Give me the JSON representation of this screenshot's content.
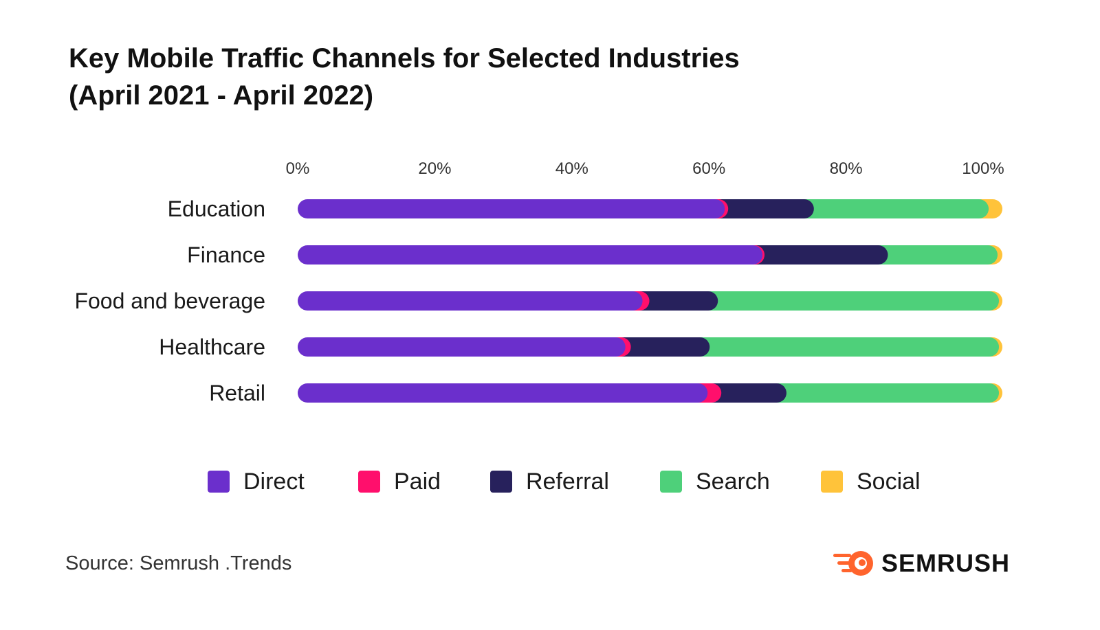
{
  "title": {
    "line1": "Key Mobile Traffic Channels for Selected Industries",
    "line2": "(April 2021 - April 2022)"
  },
  "chart_data": {
    "type": "bar",
    "orientation": "horizontal",
    "stacked": true,
    "title": "Key Mobile Traffic Channels for Selected Industries (April 2021 - April 2022)",
    "categories": [
      "Education",
      "Finance",
      "Food and beverage",
      "Healthcare",
      "Retail"
    ],
    "xlim": [
      0,
      100
    ],
    "xticks": [
      "0%",
      "20%",
      "40%",
      "60%",
      "80%",
      "100%"
    ],
    "grid": false,
    "legend_position": "bottom",
    "series": [
      {
        "name": "Direct",
        "color": "#6b2fcc",
        "values": [
          59.5,
          65.0,
          47.5,
          45.0,
          57.0
        ]
      },
      {
        "name": "Paid",
        "color": "#ff0f6c",
        "values": [
          0.5,
          0.3,
          1.0,
          0.8,
          2.0
        ]
      },
      {
        "name": "Referral",
        "color": "#27215c",
        "values": [
          12.5,
          18.0,
          10.0,
          11.5,
          9.5
        ]
      },
      {
        "name": "Search",
        "color": "#4ed07a",
        "values": [
          25.5,
          16.0,
          41.0,
          42.2,
          31.0
        ]
      },
      {
        "name": "Social",
        "color": "#ffc33a",
        "values": [
          2.0,
          0.7,
          0.5,
          0.5,
          0.5
        ]
      }
    ]
  },
  "legend": [
    {
      "label": "Direct",
      "color": "#6b2fcc"
    },
    {
      "label": "Paid",
      "color": "#ff0f6c"
    },
    {
      "label": "Referral",
      "color": "#27215c"
    },
    {
      "label": "Search",
      "color": "#4ed07a"
    },
    {
      "label": "Social",
      "color": "#ffc33a"
    }
  ],
  "source": "Source: Semrush .Trends",
  "brand": {
    "name": "SEMRUSH",
    "icon": "semrush-flame-icon",
    "color": "#ff642d"
  }
}
